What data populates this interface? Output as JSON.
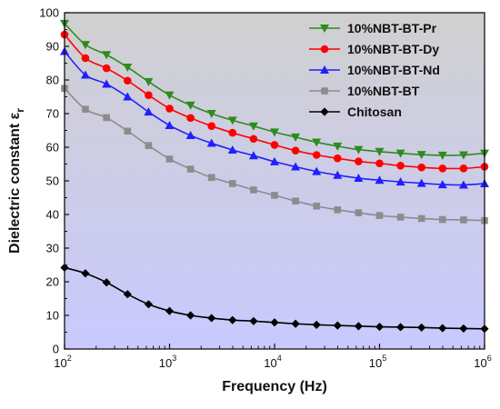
{
  "chart_data": {
    "type": "line",
    "x_scale": "log",
    "xlim": [
      100,
      1000000
    ],
    "ylim": [
      0,
      100
    ],
    "xlabel": "Frequency (Hz)",
    "ylabel_main": "Dielectric constant ε",
    "ylabel_sub": "r",
    "x_tick_values": [
      100,
      1000,
      10000,
      100000,
      1000000
    ],
    "x_ticks": [
      {
        "base": "10",
        "exp": "2"
      },
      {
        "base": "10",
        "exp": "3"
      },
      {
        "base": "10",
        "exp": "4"
      },
      {
        "base": "10",
        "exp": "5"
      },
      {
        "base": "10",
        "exp": "6"
      }
    ],
    "y_ticks": [
      "0",
      "10",
      "20",
      "30",
      "40",
      "50",
      "60",
      "70",
      "80",
      "90",
      "100"
    ],
    "legend_position": "top-right",
    "background_gradient": [
      "#d0d0d0",
      "#c9c9ff"
    ],
    "x": [
      100,
      158,
      251,
      398,
      631,
      1000,
      1585,
      2512,
      3981,
      6310,
      10000,
      15849,
      25119,
      39811,
      63096,
      100000,
      158489,
      251189,
      398107,
      630957,
      1000000
    ],
    "series": [
      {
        "name": "10%NBT-BT-Pr",
        "color": "#2e8b1e",
        "marker": "triangle-down",
        "values": [
          96.8,
          90.5,
          87.5,
          83.8,
          79.5,
          75.5,
          72.5,
          70.0,
          68.0,
          66.3,
          64.5,
          63.0,
          61.5,
          60.3,
          59.3,
          58.7,
          58.2,
          57.8,
          57.6,
          57.7,
          58.2
        ]
      },
      {
        "name": "10%NBT-BT-Dy",
        "color": "#ff0000",
        "marker": "circle",
        "values": [
          93.5,
          86.5,
          83.5,
          79.8,
          75.5,
          71.5,
          68.7,
          66.3,
          64.3,
          62.5,
          60.7,
          59.0,
          57.7,
          56.7,
          55.8,
          55.2,
          54.5,
          54.0,
          53.7,
          53.7,
          54.2
        ]
      },
      {
        "name": "10%NBT-BT-Nd",
        "color": "#1f1fff",
        "marker": "triangle-up",
        "values": [
          88.5,
          81.5,
          78.8,
          75.0,
          70.5,
          66.5,
          63.5,
          61.2,
          59.2,
          57.5,
          55.7,
          54.2,
          52.8,
          51.7,
          50.8,
          50.2,
          49.7,
          49.3,
          48.9,
          48.8,
          49.2
        ]
      },
      {
        "name": "10%NBT-BT",
        "color": "#8c8c8c",
        "marker": "square",
        "values": [
          77.5,
          71.3,
          68.8,
          64.8,
          60.5,
          56.5,
          53.5,
          51.0,
          49.2,
          47.3,
          45.7,
          44.0,
          42.5,
          41.4,
          40.5,
          39.7,
          39.2,
          38.8,
          38.5,
          38.4,
          38.2
        ]
      },
      {
        "name": "Chitosan",
        "color": "#000000",
        "marker": "diamond",
        "values": [
          24.2,
          22.5,
          19.8,
          16.3,
          13.3,
          11.3,
          10.0,
          9.2,
          8.6,
          8.3,
          7.9,
          7.5,
          7.2,
          7.0,
          6.8,
          6.6,
          6.5,
          6.4,
          6.2,
          6.1,
          6.0
        ]
      }
    ]
  }
}
